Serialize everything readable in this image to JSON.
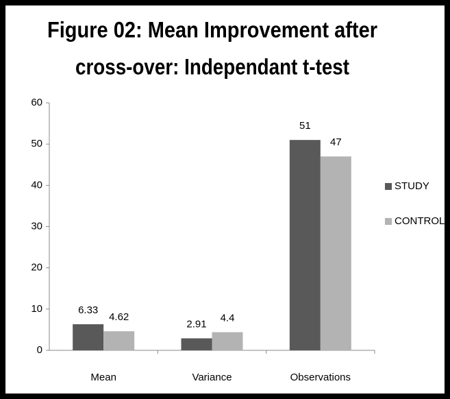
{
  "chart_data": {
    "type": "bar",
    "title": [
      "Figure 02: Mean Improvement after",
      "cross-over: Independant t-test"
    ],
    "categories": [
      "Mean",
      "Variance",
      "Observations"
    ],
    "series": [
      {
        "name": "STUDY",
        "color": "#595959",
        "values": [
          6.33,
          2.91,
          51
        ]
      },
      {
        "name": "CONTROL",
        "color": "#b3b3b3",
        "values": [
          4.62,
          4.4,
          47
        ]
      }
    ],
    "ylim": [
      0,
      60
    ],
    "yticks": [
      0,
      10,
      20,
      30,
      40,
      50,
      60
    ],
    "grid": false,
    "legend": "right"
  }
}
